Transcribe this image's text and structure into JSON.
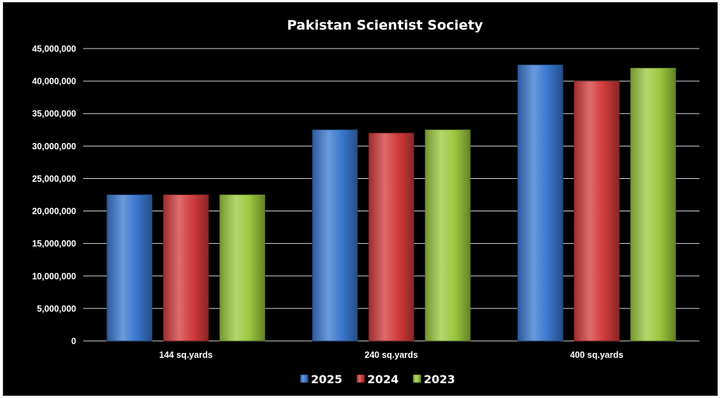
{
  "chart_data": {
    "type": "bar",
    "title": "Pakistan Scientist Society",
    "xlabel": "",
    "ylabel": "",
    "categories": [
      "144 sq.yards",
      "240 sq.yards",
      "400 sq.yards"
    ],
    "series": [
      {
        "name": "2025",
        "values": [
          22500000,
          32500000,
          42500000
        ],
        "color": "#3a78d0"
      },
      {
        "name": "2024",
        "values": [
          22500000,
          32000000,
          40000000
        ],
        "color": "#d23b3b"
      },
      {
        "name": "2023",
        "values": [
          22500000,
          32500000,
          42000000
        ],
        "color": "#9cc83e"
      }
    ],
    "ylim": [
      0,
      45000000
    ],
    "yticks": [
      "0",
      "5,000,000",
      "10,000,000",
      "15,000,000",
      "20,000,000",
      "25,000,000",
      "30,000,000",
      "35,000,000",
      "40,000,000",
      "45,000,000"
    ],
    "grid": true,
    "legend_position": "bottom",
    "background": "#000000"
  }
}
